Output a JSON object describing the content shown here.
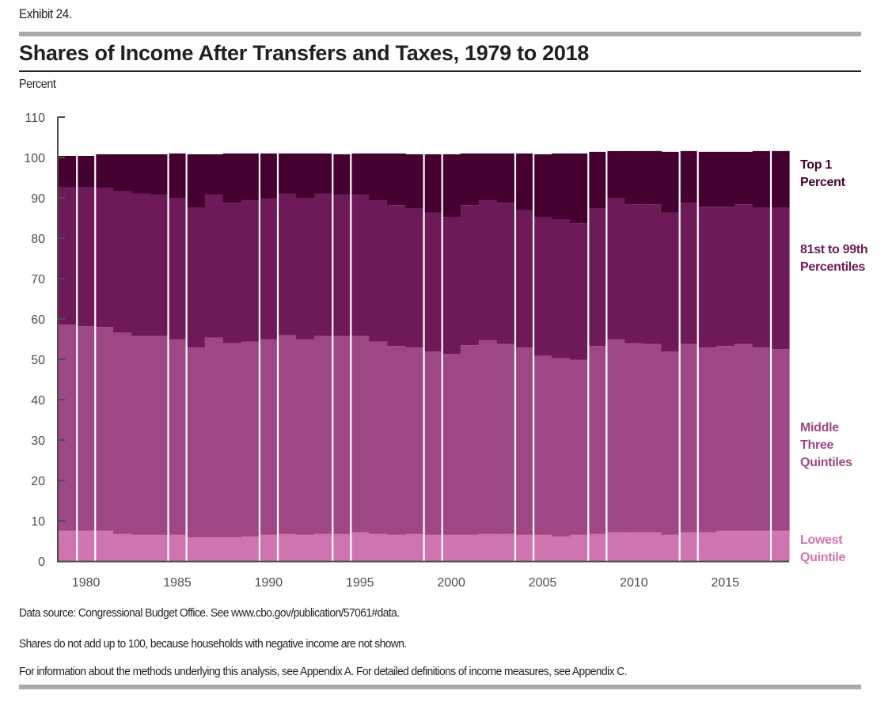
{
  "exhibit_label": "Exhibit 24.",
  "notes": [
    "Data source: Congressional Budget Office. See www.cbo.gov/publication/57061#data.",
    "Shares do not add up to 100, because households with negative income are not shown.",
    "For information about the methods underlying this analysis, see Appendix A. For detailed definitions of income measures, see Appendix C."
  ],
  "legend": [
    {
      "key": "top1",
      "lines": [
        "Top 1",
        "Percent"
      ],
      "color": "#44002f"
    },
    {
      "key": "p81_99",
      "lines": [
        "81st to 99th",
        "Percentiles"
      ],
      "color": "#6e1a58"
    },
    {
      "key": "middle",
      "lines": [
        "Middle",
        "Three",
        "Quintiles"
      ],
      "color": "#9e4784"
    },
    {
      "key": "lowest",
      "lines": [
        "Lowest",
        "Quintile"
      ],
      "color": "#d074b0"
    }
  ],
  "chart_data": {
    "type": "area",
    "stacked": true,
    "step": true,
    "title": "Shares of Income After Transfers and Taxes, 1979 to 2018",
    "xlabel": "",
    "ylabel": "Percent",
    "ylim": [
      0,
      110
    ],
    "yticks": [
      0,
      10,
      20,
      30,
      40,
      50,
      60,
      70,
      80,
      90,
      100,
      110
    ],
    "xticks": [
      1980,
      1985,
      1990,
      1995,
      2000,
      2005,
      2010,
      2015
    ],
    "xlim": [
      1979,
      2018
    ],
    "grid": false,
    "legend_position": "right",
    "separator_years": [
      1980,
      1985,
      1990,
      1994,
      1999,
      2004,
      2008,
      2013,
      2018
    ],
    "x": [
      1979,
      1980,
      1981,
      1982,
      1983,
      1984,
      1985,
      1986,
      1987,
      1988,
      1989,
      1990,
      1991,
      1992,
      1993,
      1994,
      1995,
      1996,
      1997,
      1998,
      1999,
      2000,
      2001,
      2002,
      2003,
      2004,
      2005,
      2006,
      2007,
      2008,
      2009,
      2010,
      2011,
      2012,
      2013,
      2014,
      2015,
      2016,
      2017,
      2018
    ],
    "series": [
      {
        "name": "Lowest Quintile",
        "color": "#d074b0",
        "values": [
          7.5,
          7.5,
          7.5,
          6.7,
          6.5,
          6.5,
          6.5,
          5.9,
          5.9,
          5.9,
          6.1,
          6.5,
          6.7,
          6.5,
          6.7,
          6.7,
          7.1,
          6.7,
          6.5,
          6.7,
          6.5,
          6.5,
          6.5,
          6.7,
          6.7,
          6.5,
          6.5,
          6.1,
          6.5,
          6.7,
          7.1,
          7.1,
          7.1,
          6.5,
          7.1,
          7.1,
          7.5,
          7.5,
          7.5,
          7.5
        ]
      },
      {
        "name": "Middle Three Quintiles",
        "color": "#9e4784",
        "values": [
          51.1,
          50.7,
          50.5,
          49.9,
          49.3,
          49.3,
          48.5,
          47.0,
          49.5,
          48.1,
          48.3,
          48.5,
          49.3,
          48.5,
          49.1,
          49.1,
          48.7,
          47.7,
          46.8,
          46.2,
          45.4,
          44.8,
          47.0,
          48.1,
          47.1,
          46.4,
          44.4,
          44.2,
          43.4,
          46.6,
          47.9,
          46.9,
          46.7,
          45.4,
          46.7,
          45.8,
          45.8,
          46.3,
          45.4,
          45.0
        ]
      },
      {
        "name": "81st to 99th Percentiles",
        "color": "#6e1a58",
        "values": [
          34.0,
          34.4,
          34.4,
          35.0,
          35.2,
          35.0,
          35.0,
          34.6,
          35.4,
          34.8,
          35.0,
          34.9,
          35.0,
          35.0,
          35.2,
          35.0,
          35.0,
          35.0,
          34.9,
          34.4,
          34.4,
          34.0,
          34.7,
          34.6,
          35.0,
          34.0,
          34.4,
          34.4,
          33.8,
          34.0,
          35.0,
          34.4,
          34.6,
          34.4,
          35.0,
          34.9,
          34.5,
          34.6,
          34.6,
          35.0
        ]
      },
      {
        "name": "Top 1 Percent",
        "color": "#44002f",
        "values": [
          7.8,
          7.8,
          8.4,
          9.2,
          9.8,
          10.0,
          11.0,
          13.3,
          10.0,
          12.2,
          11.6,
          11.1,
          10.0,
          11.0,
          10.0,
          10.0,
          10.2,
          11.6,
          12.8,
          13.5,
          14.5,
          15.5,
          12.8,
          11.6,
          12.2,
          14.1,
          15.5,
          16.3,
          17.3,
          14.1,
          11.6,
          13.2,
          13.2,
          15.1,
          12.8,
          13.6,
          13.6,
          13.0,
          14.1,
          14.1
        ]
      }
    ]
  }
}
